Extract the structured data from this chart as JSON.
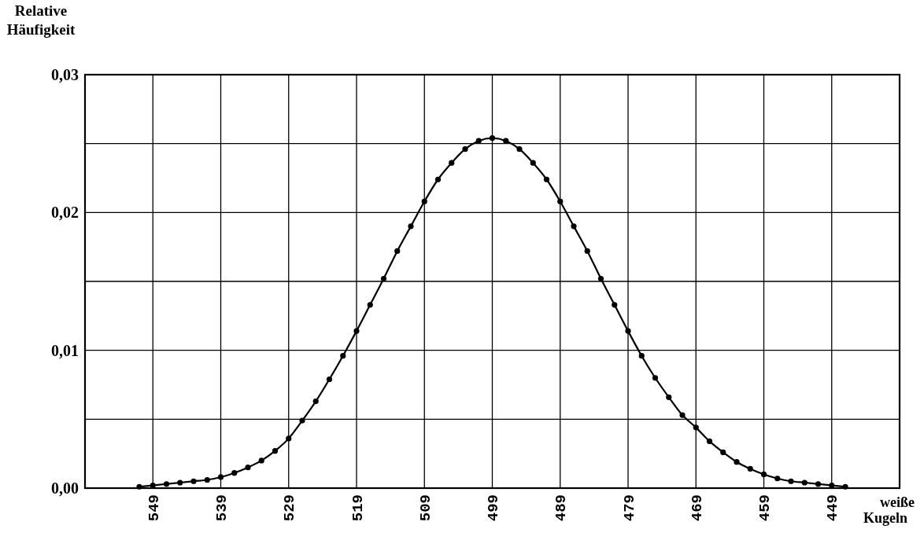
{
  "chart_data": {
    "type": "line",
    "xlabel": "weiße Kugeln",
    "ylabel": "Relative Häufigkeit",
    "x": [
      551,
      549,
      547,
      545,
      543,
      541,
      539,
      537,
      535,
      533,
      531,
      529,
      527,
      525,
      523,
      521,
      519,
      517,
      515,
      513,
      511,
      509,
      507,
      505,
      503,
      501,
      499,
      497,
      495,
      493,
      491,
      489,
      487,
      485,
      483,
      481,
      479,
      477,
      475,
      473,
      471,
      469,
      467,
      465,
      463,
      461,
      459,
      457,
      455,
      453,
      451,
      449,
      447
    ],
    "series": [
      {
        "color": "#000000",
        "values": [
          0.0001,
          0.0002,
          0.0003,
          0.0004,
          0.0005,
          0.0006,
          0.0008,
          0.0011,
          0.0015,
          0.002,
          0.0027,
          0.0036,
          0.0049,
          0.0063,
          0.0079,
          0.0096,
          0.0114,
          0.0133,
          0.0152,
          0.0172,
          0.019,
          0.0208,
          0.0224,
          0.0236,
          0.0246,
          0.0252,
          0.0254,
          0.0252,
          0.0246,
          0.0236,
          0.0224,
          0.0208,
          0.019,
          0.0172,
          0.0152,
          0.0133,
          0.0114,
          0.0096,
          0.008,
          0.0066,
          0.0053,
          0.0044,
          0.0034,
          0.0026,
          0.0019,
          0.0014,
          0.001,
          0.0007,
          0.0005,
          0.0004,
          0.0003,
          0.0002,
          0.0001
        ]
      }
    ],
    "xlim": [
      559,
      439
    ],
    "xticks": [
      549,
      539,
      529,
      519,
      509,
      499,
      489,
      479,
      469,
      459,
      449
    ],
    "ylim": [
      0,
      0.03
    ],
    "yticks": [
      {
        "value": 0,
        "label": "0,00"
      },
      {
        "value": 0.005,
        "label": null
      },
      {
        "value": 0.01,
        "label": "0,01"
      },
      {
        "value": 0.015,
        "label": null
      },
      {
        "value": 0.02,
        "label": "0,02"
      },
      {
        "value": 0.025,
        "label": null
      },
      {
        "value": 0.03,
        "label": "0,03"
      }
    ],
    "grid": true,
    "marker": "circle",
    "line_style": "solid"
  }
}
